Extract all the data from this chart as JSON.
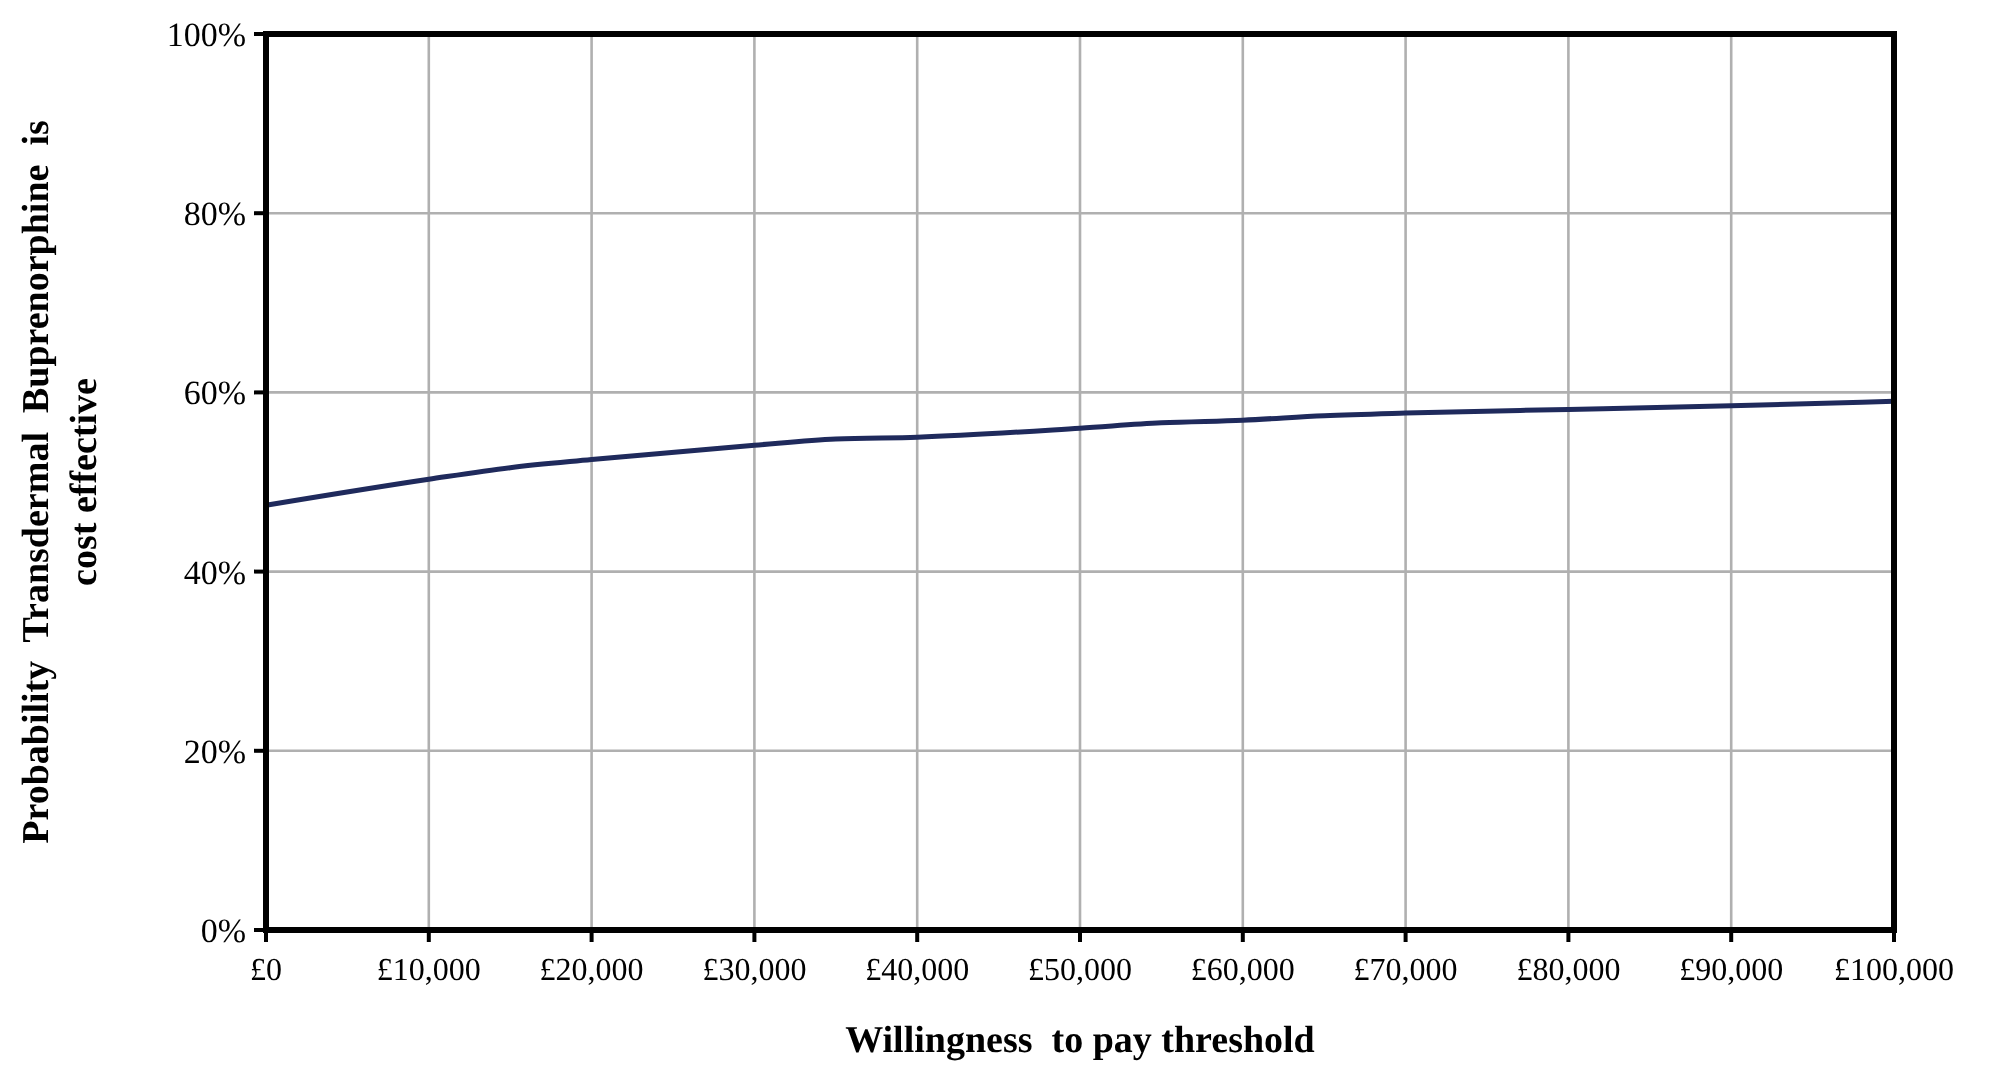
{
  "chart_data": {
    "type": "line",
    "xlabel": "Willingness  to pay threshold",
    "ylabel": "Probability  Transdermal  Buprenorphine  is\ncost effective",
    "x": [
      0,
      10000,
      15000,
      20000,
      30000,
      35000,
      40000,
      50000,
      55000,
      60000,
      65000,
      70000,
      80000,
      90000,
      100000
    ],
    "series": [
      {
        "color": "#1f2a5c",
        "values": [
          47.4,
          50.3,
          51.6,
          52.5,
          54.1,
          54.8,
          55.0,
          56.0,
          56.6,
          56.9,
          57.4,
          57.7,
          58.1,
          58.5,
          59.0
        ]
      }
    ],
    "xlim": [
      0,
      100000
    ],
    "xticks": [
      {
        "value": 0,
        "label": "£0"
      },
      {
        "value": 10000,
        "label": "£10,000"
      },
      {
        "value": 20000,
        "label": "£20,000"
      },
      {
        "value": 30000,
        "label": "£30,000"
      },
      {
        "value": 40000,
        "label": "£40,000"
      },
      {
        "value": 50000,
        "label": "£50,000"
      },
      {
        "value": 60000,
        "label": "£60,000"
      },
      {
        "value": 70000,
        "label": "£70,000"
      },
      {
        "value": 80000,
        "label": "£80,000"
      },
      {
        "value": 90000,
        "label": "£90,000"
      },
      {
        "value": 100000,
        "label": "£100,000"
      }
    ],
    "ylim": [
      0,
      100
    ],
    "yticks": [
      {
        "value": 0,
        "label": "0%"
      },
      {
        "value": 20,
        "label": "20%"
      },
      {
        "value": 40,
        "label": "40%"
      },
      {
        "value": 60,
        "label": "60%"
      },
      {
        "value": 80,
        "label": "80%"
      },
      {
        "value": 100,
        "label": "100%"
      }
    ],
    "grid": true,
    "marker": "none",
    "line_style": "solid"
  }
}
